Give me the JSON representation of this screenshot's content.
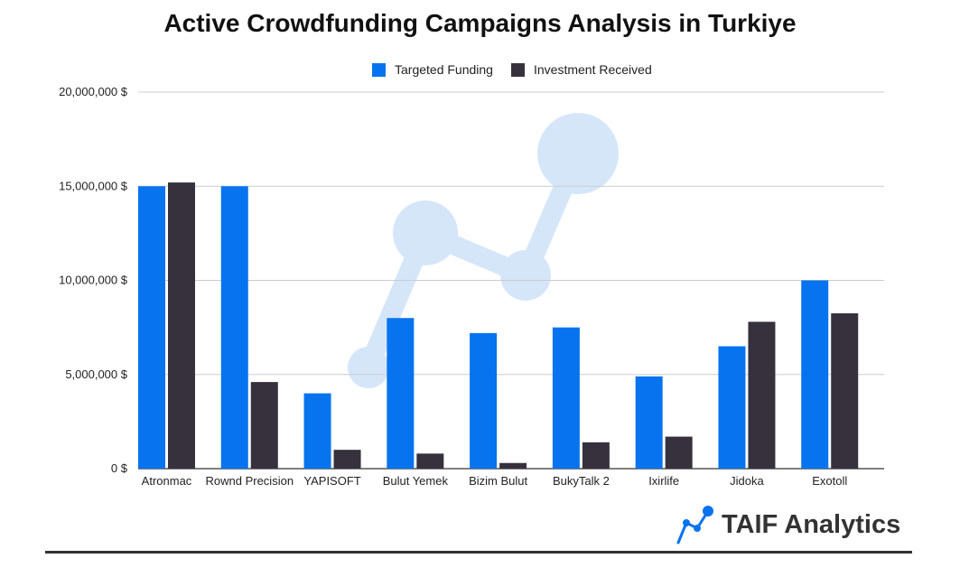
{
  "chart_data": {
    "type": "bar",
    "title": "Active Crowdfunding Campaigns Analysis in Turkiye",
    "categories": [
      "Atronmac",
      "Rownd Precision",
      "YAPISOFT",
      "Bulut Yemek",
      "Bizim Bulut",
      "BukyTalk 2",
      "Ixirlife",
      "Jidoka",
      "Exotoll"
    ],
    "series": [
      {
        "name": "Targeted Funding",
        "color": "#0873EE",
        "values": [
          15000000,
          15000000,
          4000000,
          8000000,
          7200000,
          7500000,
          4900000,
          6500000,
          10000000
        ]
      },
      {
        "name": "Investment Received",
        "color": "#37313D",
        "values": [
          15200000,
          4600000,
          1000000,
          800000,
          300000,
          1400000,
          1700000,
          7800000,
          8250000
        ]
      }
    ],
    "yticks": [
      "0 $",
      "5,000,000 $",
      "10,000,000 $",
      "15,000,000 $",
      "20,000,000 $"
    ],
    "ylim": [
      0,
      20000000
    ],
    "xlabel": "",
    "ylabel": "",
    "grid": true,
    "legend_position": "top-center"
  },
  "brand": {
    "name": "TAIF Analytics",
    "icon": "analytics-logo-icon",
    "color": "#0873EE"
  }
}
